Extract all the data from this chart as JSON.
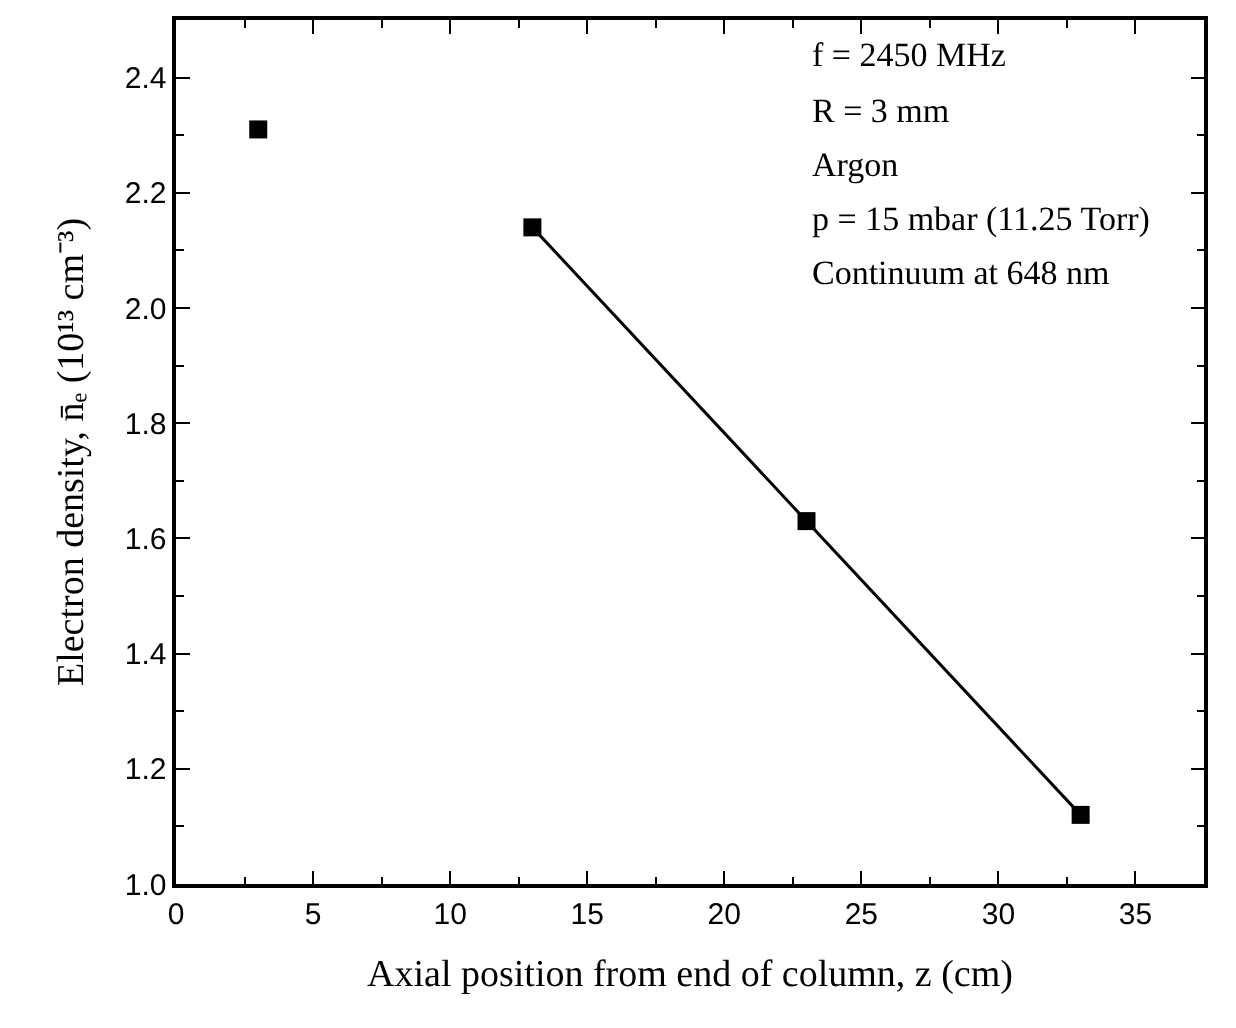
{
  "chart_data": {
    "type": "scatter",
    "xlabel": "Axial position from end of column, z (cm)",
    "ylabel": "Electron density, n̄ₑ (10¹³ cm⁻³)",
    "xlim": [
      0,
      37.5
    ],
    "xticks": [
      0,
      5,
      10,
      15,
      20,
      25,
      30,
      35
    ],
    "ylim": [
      1.0,
      2.5
    ],
    "yticks": [
      {
        "value": 1.0,
        "label": "1.0"
      },
      {
        "value": 1.2,
        "label": "1.2"
      },
      {
        "value": 1.4,
        "label": "1.4"
      },
      {
        "value": 1.6,
        "label": "1.6"
      },
      {
        "value": 1.8,
        "label": "1.8"
      },
      {
        "value": 2.0,
        "label": "2.0"
      },
      {
        "value": 2.2,
        "label": "2.2"
      },
      {
        "value": 2.4,
        "label": "2.4"
      }
    ],
    "series": [
      {
        "color": "#000000",
        "marker": "square",
        "x": [
          3,
          13,
          23,
          33
        ],
        "values": [
          2.31,
          2.14,
          1.63,
          1.12
        ]
      },
      {
        "type": "line",
        "color": "#000000",
        "marker": "none",
        "line_style": "solid",
        "x": [
          13,
          33
        ],
        "values": [
          2.14,
          1.12
        ]
      }
    ],
    "annotations": [
      "f = 2450 MHz",
      "R = 3 mm",
      "Argon",
      "p = 15 mbar (11.25 Torr)",
      "Continuum at 648 nm"
    ]
  }
}
